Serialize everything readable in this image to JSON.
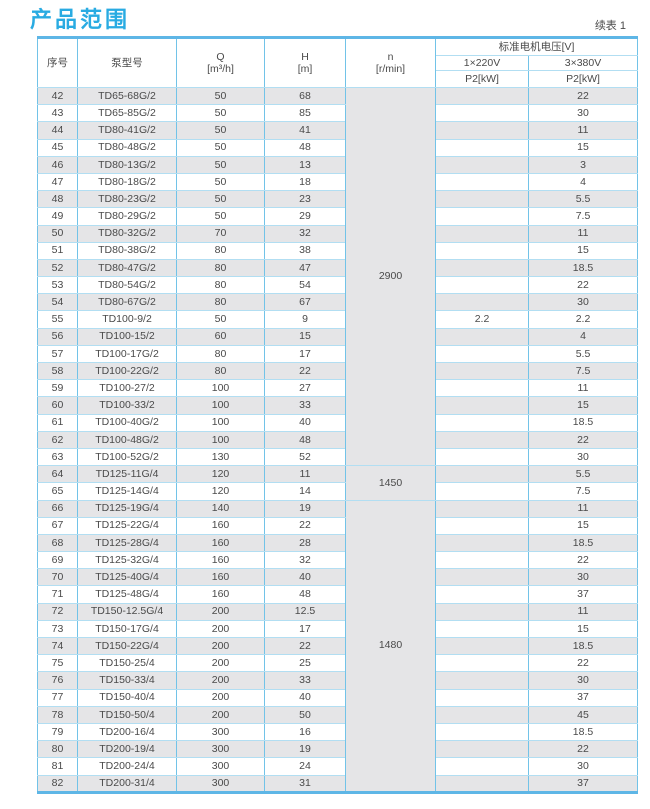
{
  "page": {
    "title": "产品范围",
    "continuation_label": "续表 1"
  },
  "colors": {
    "accent_title": "#29abe2",
    "table_bar": "#5eb6e6",
    "grid_horizontal": "#b2def2",
    "grid_vertical": "#72c3e8",
    "row_stripe": "#e5e5e7",
    "text": "#4a4a4a"
  },
  "table": {
    "headers": {
      "seq": "序号",
      "model": "泵型号",
      "q_line1": "Q",
      "q_line2": "[m³/h]",
      "h_line1": "H",
      "h_line2": "[m]",
      "n_line1": "n",
      "n_line2": "[r/min]",
      "voltage_group": "标准电机电压[V]",
      "v220": "1×220V",
      "v380": "3×380V",
      "p2": "P2[kW]"
    },
    "n_spans": [
      {
        "value": "2900",
        "rows": 22
      },
      {
        "value": "1450",
        "rows": 2
      },
      {
        "value": "1480",
        "rows": 17
      }
    ],
    "rows": [
      [
        "42",
        "TD65-68G/2",
        "50",
        "68",
        "",
        "22"
      ],
      [
        "43",
        "TD65-85G/2",
        "50",
        "85",
        "",
        "30"
      ],
      [
        "44",
        "TD80-41G/2",
        "50",
        "41",
        "",
        "11"
      ],
      [
        "45",
        "TD80-48G/2",
        "50",
        "48",
        "",
        "15"
      ],
      [
        "46",
        "TD80-13G/2",
        "50",
        "13",
        "",
        "3"
      ],
      [
        "47",
        "TD80-18G/2",
        "50",
        "18",
        "",
        "4"
      ],
      [
        "48",
        "TD80-23G/2",
        "50",
        "23",
        "",
        "5.5"
      ],
      [
        "49",
        "TD80-29G/2",
        "50",
        "29",
        "",
        "7.5"
      ],
      [
        "50",
        "TD80-32G/2",
        "70",
        "32",
        "",
        "11"
      ],
      [
        "51",
        "TD80-38G/2",
        "80",
        "38",
        "",
        "15"
      ],
      [
        "52",
        "TD80-47G/2",
        "80",
        "47",
        "",
        "18.5"
      ],
      [
        "53",
        "TD80-54G/2",
        "80",
        "54",
        "",
        "22"
      ],
      [
        "54",
        "TD80-67G/2",
        "80",
        "67",
        "",
        "30"
      ],
      [
        "55",
        "TD100-9/2",
        "50",
        "9",
        "2.2",
        "2.2"
      ],
      [
        "56",
        "TD100-15/2",
        "60",
        "15",
        "",
        "4"
      ],
      [
        "57",
        "TD100-17G/2",
        "80",
        "17",
        "",
        "5.5"
      ],
      [
        "58",
        "TD100-22G/2",
        "80",
        "22",
        "",
        "7.5"
      ],
      [
        "59",
        "TD100-27/2",
        "100",
        "27",
        "",
        "11"
      ],
      [
        "60",
        "TD100-33/2",
        "100",
        "33",
        "",
        "15"
      ],
      [
        "61",
        "TD100-40G/2",
        "100",
        "40",
        "",
        "18.5"
      ],
      [
        "62",
        "TD100-48G/2",
        "100",
        "48",
        "",
        "22"
      ],
      [
        "63",
        "TD100-52G/2",
        "130",
        "52",
        "",
        "30"
      ],
      [
        "64",
        "TD125-11G/4",
        "120",
        "11",
        "",
        "5.5"
      ],
      [
        "65",
        "TD125-14G/4",
        "120",
        "14",
        "",
        "7.5"
      ],
      [
        "66",
        "TD125-19G/4",
        "140",
        "19",
        "",
        "11"
      ],
      [
        "67",
        "TD125-22G/4",
        "160",
        "22",
        "",
        "15"
      ],
      [
        "68",
        "TD125-28G/4",
        "160",
        "28",
        "",
        "18.5"
      ],
      [
        "69",
        "TD125-32G/4",
        "160",
        "32",
        "",
        "22"
      ],
      [
        "70",
        "TD125-40G/4",
        "160",
        "40",
        "",
        "30"
      ],
      [
        "71",
        "TD125-48G/4",
        "160",
        "48",
        "",
        "37"
      ],
      [
        "72",
        "TD150-12.5G/4",
        "200",
        "12.5",
        "",
        "11"
      ],
      [
        "73",
        "TD150-17G/4",
        "200",
        "17",
        "",
        "15"
      ],
      [
        "74",
        "TD150-22G/4",
        "200",
        "22",
        "",
        "18.5"
      ],
      [
        "75",
        "TD150-25/4",
        "200",
        "25",
        "",
        "22"
      ],
      [
        "76",
        "TD150-33/4",
        "200",
        "33",
        "",
        "30"
      ],
      [
        "77",
        "TD150-40/4",
        "200",
        "40",
        "",
        "37"
      ],
      [
        "78",
        "TD150-50/4",
        "200",
        "50",
        "",
        "45"
      ],
      [
        "79",
        "TD200-16/4",
        "300",
        "16",
        "",
        "18.5"
      ],
      [
        "80",
        "TD200-19/4",
        "300",
        "19",
        "",
        "22"
      ],
      [
        "81",
        "TD200-24/4",
        "300",
        "24",
        "",
        "30"
      ],
      [
        "82",
        "TD200-31/4",
        "300",
        "31",
        "",
        "37"
      ]
    ]
  }
}
